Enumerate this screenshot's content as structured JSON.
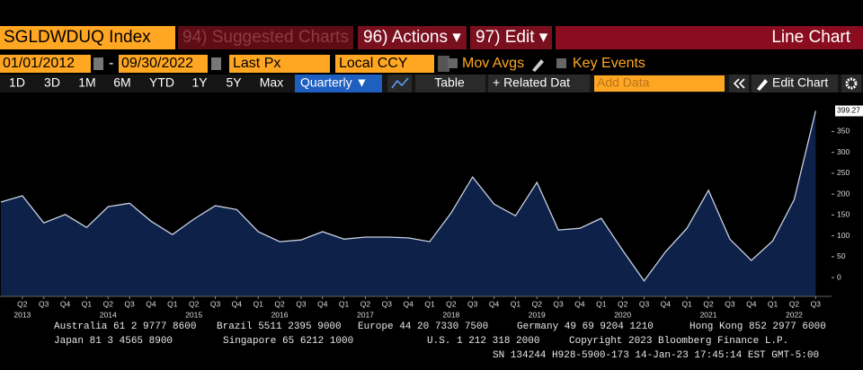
{
  "toolbar": {
    "ticker": "SGLDWDUQ Index",
    "suggested": "94) Suggested Charts",
    "actions": "96) Actions ▾",
    "edit": "97) Edit ▾",
    "chart_kind": "Line Chart"
  },
  "settings": {
    "start_date": "01/01/2012",
    "separator": "-",
    "end_date": "09/30/2022",
    "field": "Last Px",
    "currency": "Local CCY",
    "mov_avgs": "Mov Avgs",
    "key_events": "Key Events"
  },
  "range_buttons": [
    "1D",
    "3D",
    "1M",
    "6M",
    "YTD",
    "1Y",
    "5Y",
    "Max"
  ],
  "controls": {
    "period": "Quarterly ▼",
    "table": "Table",
    "related": "+ Related Dat",
    "add_data": "Add Data",
    "edit_chart": "Edit Chart"
  },
  "chart_data": {
    "type": "area",
    "color": "#c9d2e3",
    "fill": "#0e2149",
    "categories": [
      null,
      "Q2",
      "Q3",
      "Q4",
      "Q1",
      "Q2",
      "Q3",
      "Q4",
      "Q1",
      "Q2",
      "Q3",
      "Q4",
      "Q1",
      "Q2",
      "Q3",
      "Q4",
      "Q1",
      "Q2",
      "Q3",
      "Q4",
      "Q1",
      "Q2",
      "Q3",
      "Q4",
      "Q1",
      "Q2",
      "Q3",
      "Q4",
      "Q1",
      "Q2",
      "Q3",
      "Q4",
      "Q1",
      "Q2",
      "Q3",
      "Q4",
      "Q1",
      "Q2",
      "Q3"
    ],
    "years": [
      null,
      "2013",
      null,
      null,
      null,
      "2014",
      null,
      null,
      null,
      "2015",
      null,
      null,
      null,
      "2016",
      null,
      null,
      null,
      "2017",
      null,
      null,
      null,
      "2018",
      null,
      null,
      null,
      "2019",
      null,
      null,
      null,
      "2020",
      null,
      null,
      null,
      "2021",
      null,
      null,
      null,
      "2022",
      null
    ],
    "values": [
      181,
      196,
      131,
      151,
      120,
      170,
      178,
      135,
      103,
      140,
      172,
      163,
      110,
      86,
      90,
      110,
      92,
      97,
      97,
      95,
      86,
      155,
      241,
      176,
      148,
      228,
      114,
      118,
      142,
      65,
      -8,
      62,
      118,
      209,
      92,
      41,
      88,
      187,
      399.27
    ],
    "ylim": [
      -45,
      424
    ],
    "yticks": [
      0,
      50,
      100,
      150,
      200,
      250,
      300,
      350
    ],
    "grid": false
  },
  "footer": [
    [
      "Australia 61 2 9777 8600",
      "Brazil 5511 2395 9000",
      "Europe 44 20 7330 7500",
      "Germany 49 69 9204 1210",
      "Hong Kong 852 2977 6000"
    ],
    [
      "Japan 81 3 4565 8900",
      "Singapore 65 6212 1000",
      "U.S. 1 212 318 2000",
      "Copyright 2023 Bloomberg Finance L.P."
    ],
    [
      "SN 134244 H928-5900-173 14-Jan-23 17:45:14 EST  GMT-5:00"
    ]
  ]
}
